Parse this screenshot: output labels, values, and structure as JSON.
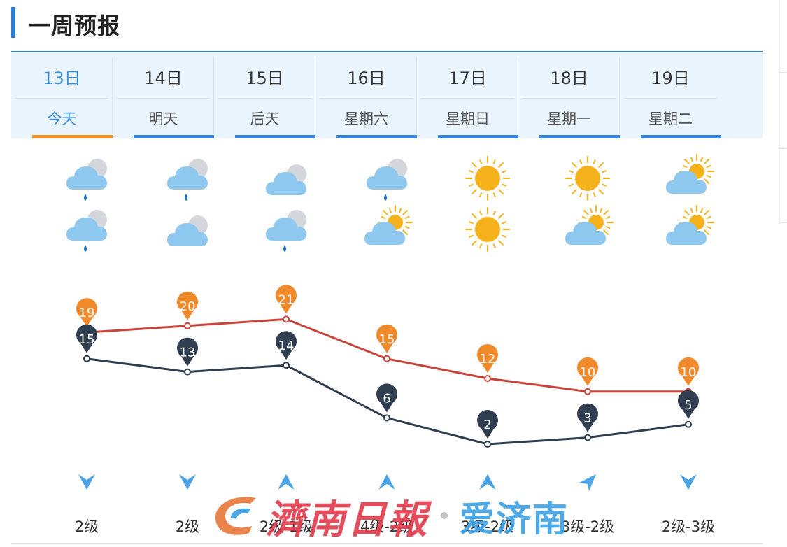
{
  "header": {
    "title": "一周预报"
  },
  "days": [
    {
      "date": "13日",
      "week": "今天",
      "active": true
    },
    {
      "date": "14日",
      "week": "明天"
    },
    {
      "date": "15日",
      "week": "后天"
    },
    {
      "date": "16日",
      "week": "星期六"
    },
    {
      "date": "17日",
      "week": "星期日"
    },
    {
      "date": "18日",
      "week": "星期一"
    },
    {
      "date": "19日",
      "week": "星期二"
    }
  ],
  "weather_icons": {
    "day": [
      "rain-cloud-icon",
      "rain-cloud-icon",
      "cloud-icon",
      "rain-cloud-icon",
      "sun-icon",
      "sun-icon",
      "partly-cloudy-icon"
    ],
    "night": [
      "rain-cloud-icon",
      "cloud-icon",
      "rain-cloud-icon",
      "partly-cloudy-icon",
      "sun-icon",
      "partly-cloudy-icon",
      "partly-cloudy-icon"
    ]
  },
  "temperatures": {
    "high": [
      19,
      20,
      21,
      15,
      12,
      10,
      10
    ],
    "low": [
      15,
      13,
      14,
      6,
      2,
      3,
      5
    ]
  },
  "wind": [
    {
      "direction": "down",
      "level": "2级"
    },
    {
      "direction": "down",
      "level": "2级"
    },
    {
      "direction": "up",
      "level": "2级-1级"
    },
    {
      "direction": "up",
      "level": "4级-2级"
    },
    {
      "direction": "up",
      "level": "3级-2级"
    },
    {
      "direction": "up-right",
      "level": "3级-2级"
    },
    {
      "direction": "down",
      "level": "2级-3级"
    }
  ],
  "watermark": {
    "text1": "濟南日報",
    "text2": "爱济南"
  },
  "colors": {
    "accent": "#2c7fd4",
    "tab_bg": "#eaf4fc",
    "active_underline": "#f0952e",
    "high_line": "#c8433a",
    "high_marker": "#f0892a",
    "low_line": "#2f3e50",
    "low_marker": "#2f3e50",
    "sun": "#f6b21a",
    "cloud": "#8fc8ef",
    "rain": "#1f6fc2",
    "wind_arrow": "#4aa3e6"
  }
}
